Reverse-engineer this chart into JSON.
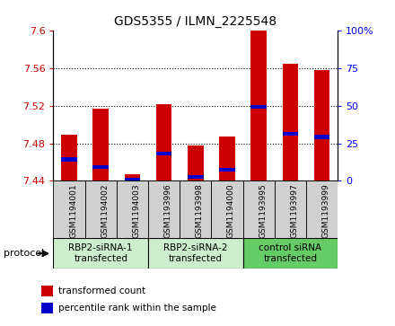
{
  "title": "GDS5355 / ILMN_2225548",
  "samples": [
    "GSM1194001",
    "GSM1194002",
    "GSM1194003",
    "GSM1193996",
    "GSM1193998",
    "GSM1194000",
    "GSM1193995",
    "GSM1193997",
    "GSM1193999"
  ],
  "red_values": [
    7.489,
    7.517,
    7.447,
    7.522,
    7.478,
    7.487,
    7.6,
    7.565,
    7.558
  ],
  "blue_values": [
    7.463,
    7.455,
    7.441,
    7.469,
    7.444,
    7.452,
    7.519,
    7.49,
    7.487
  ],
  "ylim_left": [
    7.44,
    7.6
  ],
  "ylim_right": [
    0,
    100
  ],
  "yticks_left": [
    7.44,
    7.48,
    7.52,
    7.56,
    7.6
  ],
  "yticks_right": [
    0,
    25,
    50,
    75,
    100
  ],
  "ytick_labels_left": [
    "7.44",
    "7.48",
    "7.52",
    "7.56",
    "7.6"
  ],
  "ytick_labels_right": [
    "0",
    "25",
    "50",
    "75",
    "100%"
  ],
  "grid_values": [
    7.48,
    7.52,
    7.56
  ],
  "protocols": [
    {
      "label": "RBP2-siRNA-1\ntransfected",
      "start": 0,
      "end": 3,
      "color": "#cceecc"
    },
    {
      "label": "RBP2-siRNA-2\ntransfected",
      "start": 3,
      "end": 6,
      "color": "#cceecc"
    },
    {
      "label": "control siRNA\ntransfected",
      "start": 6,
      "end": 9,
      "color": "#66cc66"
    }
  ],
  "bar_width": 0.5,
  "red_color": "#cc0000",
  "blue_color": "#0000cc",
  "bg_color": "#ffffff",
  "panel_bg": "#d0d0d0",
  "legend_red": "transformed count",
  "legend_blue": "percentile rank within the sample",
  "protocol_label": "protocol"
}
